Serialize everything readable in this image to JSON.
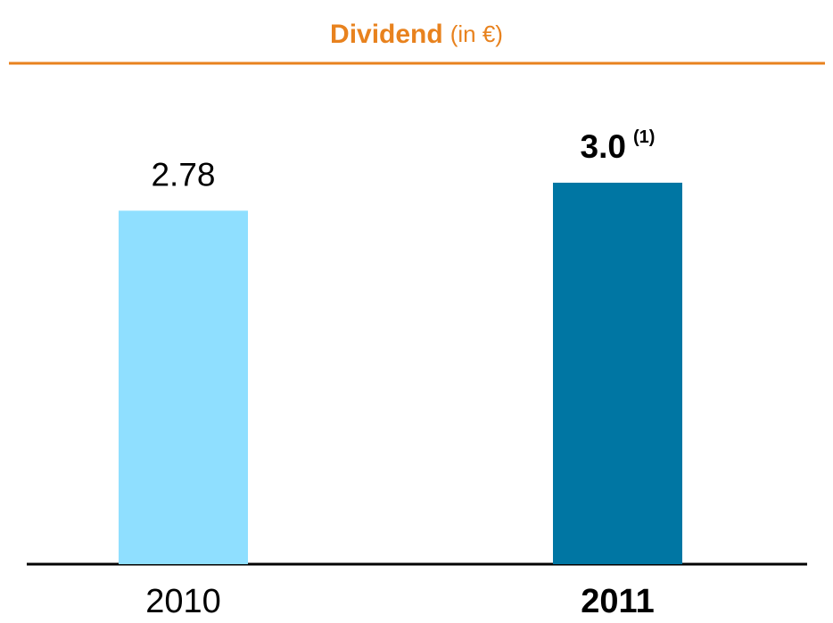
{
  "chart_data": {
    "type": "bar",
    "title": "Dividend",
    "title_unit": "(in €)",
    "categories": [
      "2010",
      "2011"
    ],
    "values": [
      2.78,
      3.0
    ],
    "value_labels": [
      "2.78",
      "3.0"
    ],
    "value_annotations": [
      null,
      "(1)"
    ],
    "colors": [
      "#8fdfff",
      "#0076a3"
    ],
    "emphasis": [
      false,
      true
    ],
    "title_color": "#e8821e"
  }
}
